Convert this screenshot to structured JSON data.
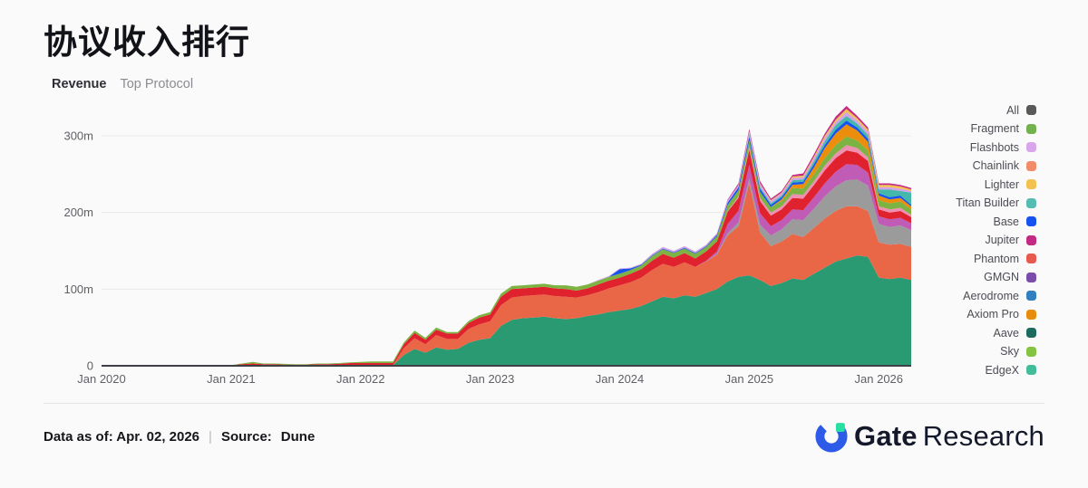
{
  "header": {
    "title": "协议收入排行",
    "tabs": [
      {
        "label": "Revenue",
        "active": true
      },
      {
        "label": "Top Protocol",
        "active": false
      }
    ]
  },
  "legend": {
    "items": [
      {
        "label": "All",
        "color": "#595959"
      },
      {
        "label": "Fragment",
        "color": "#72b14e"
      },
      {
        "label": "Flashbots",
        "color": "#d9a6ec"
      },
      {
        "label": "Chainlink",
        "color": "#f28b68"
      },
      {
        "label": "Lighter",
        "color": "#f2c14e"
      },
      {
        "label": "Titan Builder",
        "color": "#55bcb3"
      },
      {
        "label": "Base",
        "color": "#1652f0"
      },
      {
        "label": "Jupiter",
        "color": "#c42a83"
      },
      {
        "label": "Phantom",
        "color": "#e8594f"
      },
      {
        "label": "GMGN",
        "color": "#7a4dad"
      },
      {
        "label": "Aerodrome",
        "color": "#2f7fc1"
      },
      {
        "label": "Axiom Pro",
        "color": "#e88c0c"
      },
      {
        "label": "Aave",
        "color": "#1d6b5e"
      },
      {
        "label": "Sky",
        "color": "#85c440"
      },
      {
        "label": "EdgeX",
        "color": "#43bc9a"
      }
    ]
  },
  "chart_data": {
    "type": "area",
    "stacked": true,
    "title": "协议收入排行",
    "unit": "USD millions per month",
    "x_desc": "Monthly, Jan 2020 - Apr 2026 (76 points)",
    "n_points": 76,
    "ylim": [
      0,
      300
    ],
    "grid": "horizontal",
    "legend_position": "right",
    "y_ticks": [
      {
        "v": 0,
        "label": "0"
      },
      {
        "v": 100,
        "label": "100m"
      },
      {
        "v": 200,
        "label": "200m"
      },
      {
        "v": 300,
        "label": "300m"
      }
    ],
    "x_ticks": [
      {
        "i": 0,
        "label": "Jan 2020"
      },
      {
        "i": 12,
        "label": "Jan 2021"
      },
      {
        "i": 24,
        "label": "Jan 2022"
      },
      {
        "i": 36,
        "label": "Jan 2023"
      },
      {
        "i": 48,
        "label": "Jan 2024"
      },
      {
        "i": 60,
        "label": "Jan 2025"
      },
      {
        "i": 72,
        "label": "Jan 2026"
      }
    ],
    "series": [
      {
        "name": "sea-green-base-layer",
        "color": "#2a9a72",
        "start": 23,
        "values": [
          0.5,
          0.5,
          0.5,
          1,
          1,
          14,
          22,
          17,
          24,
          21,
          22,
          30,
          34,
          36,
          52,
          60,
          62,
          63,
          64,
          62,
          61,
          62,
          65,
          67,
          70,
          72,
          74,
          78,
          84,
          90,
          88,
          92,
          90,
          95,
          100,
          110,
          116,
          118,
          112,
          104,
          108,
          114,
          112,
          120,
          128,
          136,
          140,
          144,
          142,
          115,
          113,
          115,
          112
        ]
      },
      {
        "name": "salmon-layer",
        "color": "#e96746",
        "start": 28,
        "values": [
          9,
          14,
          11,
          16,
          14,
          13,
          18,
          20,
          22,
          27,
          29,
          29,
          29,
          29,
          29,
          29,
          27,
          27,
          29,
          31,
          33,
          35,
          37,
          41,
          43,
          41,
          43,
          39,
          41,
          45,
          60,
          66,
          120,
          62,
          52,
          54,
          58,
          56,
          60,
          64,
          66,
          68,
          64,
          60,
          46,
          45,
          44,
          43
        ]
      },
      {
        "name": "gray-layer",
        "color": "#9b9b9b",
        "start": 57,
        "values": [
          1,
          3,
          5,
          6,
          10,
          14,
          16,
          19,
          22,
          25,
          29,
          32,
          34,
          35,
          33,
          24,
          23,
          24,
          22
        ]
      },
      {
        "name": "orchid-layer",
        "color": "#c05bb6",
        "start": 56,
        "values": [
          1,
          3,
          12,
          15,
          18,
          15,
          12,
          12,
          13,
          13,
          15,
          17,
          19,
          21,
          19,
          17,
          10,
          10,
          10,
          9
        ]
      },
      {
        "name": "red-layer",
        "color": "#e0222e",
        "start": 8,
        "values": [
          0.3,
          0.4,
          0.5,
          0.6,
          1,
          2,
          3,
          2,
          2,
          1.5,
          1.5,
          1.5,
          2,
          2,
          2.5,
          3,
          3,
          3,
          2.5,
          2.5,
          5,
          7,
          6,
          7,
          7,
          7,
          8,
          9,
          9,
          11,
          11,
          10,
          10,
          10,
          10,
          10,
          9,
          9,
          10,
          10,
          10,
          11,
          11,
          12,
          13,
          12,
          12,
          11,
          12,
          13,
          16,
          17,
          20,
          16,
          14,
          14,
          15,
          15,
          16,
          17,
          18,
          18,
          16,
          15,
          9,
          9,
          9,
          8
        ]
      },
      {
        "name": "pink-layer",
        "color": "#ef8fb2",
        "start": 58,
        "values": [
          1,
          2,
          3,
          4,
          4,
          4,
          5,
          5,
          5,
          6,
          6,
          7,
          6,
          5,
          4,
          4,
          4,
          3
        ]
      },
      {
        "name": "lime-layer",
        "color": "#7cb342",
        "start": 13,
        "values": [
          1,
          2,
          1,
          1,
          1,
          0.5,
          0.5,
          1,
          1,
          1,
          1,
          1.5,
          2,
          2,
          2,
          2.5,
          3,
          2.5,
          3,
          2,
          2,
          2.5,
          3,
          3,
          4,
          4,
          4,
          4,
          4,
          4,
          5,
          5,
          5,
          5,
          5,
          5,
          5,
          5,
          6,
          6,
          6,
          6,
          6,
          6,
          7,
          8,
          8,
          9,
          8,
          7,
          7,
          8,
          8,
          9,
          10,
          11,
          11,
          10,
          9,
          8,
          8,
          8,
          7
        ]
      },
      {
        "name": "orange-layer",
        "color": "#ec8d0b",
        "start": 63,
        "values": [
          2,
          4,
          6,
          9,
          13,
          15,
          16,
          13,
          11,
          6,
          5,
          5,
          4
        ]
      },
      {
        "name": "blue-layer",
        "color": "#1652f0",
        "start": 48,
        "values": [
          6,
          2,
          1,
          1,
          1,
          1,
          1,
          1,
          1,
          2,
          3,
          4,
          5,
          4,
          3,
          3,
          3,
          3,
          4,
          4,
          5,
          5,
          4,
          4,
          3,
          3,
          3,
          2
        ]
      },
      {
        "name": "teal-layer",
        "color": "#45b8ac",
        "start": 60,
        "values": [
          2,
          2,
          2,
          2,
          3,
          3,
          4,
          5,
          6,
          6,
          5,
          5,
          5,
          10,
          6,
          16
        ]
      },
      {
        "name": "lavender-layer",
        "color": "#d3a1e8",
        "start": 46,
        "values": [
          1,
          1,
          1,
          1,
          1,
          2,
          2,
          2,
          2,
          2,
          2,
          2,
          3,
          3,
          4,
          4,
          3,
          3,
          3,
          3,
          4,
          4,
          4,
          5,
          4,
          4,
          3,
          3,
          3,
          2
        ]
      },
      {
        "name": "yellow-layer",
        "color": "#f2c14e",
        "start": 60,
        "values": [
          1,
          1,
          1,
          1,
          2,
          2,
          2,
          3,
          3,
          4,
          3,
          3,
          3,
          3,
          3,
          2
        ]
      },
      {
        "name": "crimson-layer",
        "color": "#c42a83",
        "start": 58,
        "values": [
          1,
          2,
          3,
          3,
          2,
          2,
          2,
          3,
          3,
          3,
          4,
          4,
          3,
          3,
          2,
          2,
          2,
          2
        ]
      }
    ]
  },
  "footer": {
    "data_as_of": "Data as of: Apr. 02, 2026",
    "separator": "|",
    "source_label": "Source:",
    "source_value": "Dune",
    "logo_bold": "Gate",
    "logo_light": "Research",
    "logo_blue": "#2d5be8",
    "logo_green": "#27dfa2"
  }
}
